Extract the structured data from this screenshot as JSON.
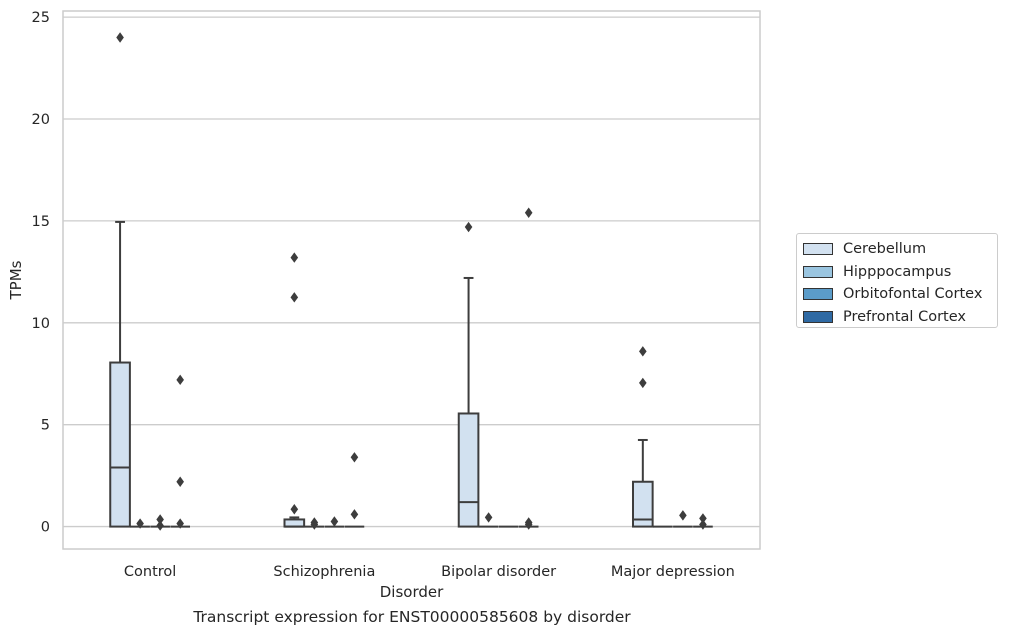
{
  "chart_data": {
    "type": "box",
    "xlabel": "Disorder",
    "ylabel": "TPMs",
    "caption": "Transcript expression for ENST00000585608 by disorder",
    "ylim": [
      -1.1,
      25.3
    ],
    "yticks": [
      0,
      5,
      10,
      15,
      20,
      25
    ],
    "grid": "horizontal",
    "legend_placement": "right",
    "categories": [
      "Control",
      "Schizophrenia",
      "Bipolar disorder",
      "Major depression"
    ],
    "series": [
      {
        "name": "Cerebellum",
        "color": "#d2e1f0",
        "boxes": [
          {
            "q1": 0,
            "median": 2.9,
            "q3": 8.05,
            "whisker_low": 0,
            "whisker_high": 14.95,
            "outliers": [
              24.0
            ]
          },
          {
            "q1": 0,
            "median": 0,
            "q3": 0.35,
            "whisker_low": 0,
            "whisker_high": 0.45,
            "outliers": [
              13.2,
              11.25,
              0.85
            ]
          },
          {
            "q1": 0,
            "median": 1.2,
            "q3": 5.55,
            "whisker_low": 0,
            "whisker_high": 12.2,
            "outliers": [
              14.7
            ]
          },
          {
            "q1": 0,
            "median": 0.35,
            "q3": 2.2,
            "whisker_low": 0,
            "whisker_high": 4.25,
            "outliers": [
              8.6,
              7.05
            ]
          }
        ]
      },
      {
        "name": "Hipppocampus",
        "color": "#9ac5e0",
        "boxes": [
          {
            "q1": 0,
            "median": 0,
            "q3": 0,
            "whisker_low": 0,
            "whisker_high": 0,
            "outliers": [
              0.15
            ]
          },
          {
            "q1": 0,
            "median": 0,
            "q3": 0,
            "whisker_low": 0,
            "whisker_high": 0,
            "outliers": [
              0.2,
              0.1
            ]
          },
          {
            "q1": 0,
            "median": 0,
            "q3": 0,
            "whisker_low": 0,
            "whisker_high": 0,
            "outliers": [
              0.45
            ]
          },
          {
            "q1": 0,
            "median": 0,
            "q3": 0,
            "whisker_low": 0,
            "whisker_high": 0,
            "outliers": []
          }
        ]
      },
      {
        "name": "Orbitofontal Cortex",
        "color": "#5b9cc9",
        "boxes": [
          {
            "q1": 0,
            "median": 0,
            "q3": 0,
            "whisker_low": 0,
            "whisker_high": 0,
            "outliers": [
              0.35,
              0.05
            ]
          },
          {
            "q1": 0,
            "median": 0,
            "q3": 0,
            "whisker_low": 0,
            "whisker_high": 0,
            "outliers": [
              0.25
            ]
          },
          {
            "q1": 0,
            "median": 0,
            "q3": 0,
            "whisker_low": 0,
            "whisker_high": 0,
            "outliers": []
          },
          {
            "q1": 0,
            "median": 0,
            "q3": 0,
            "whisker_low": 0,
            "whisker_high": 0,
            "outliers": [
              0.55
            ]
          }
        ]
      },
      {
        "name": "Prefrontal Cortex",
        "color": "#2f6aa4",
        "boxes": [
          {
            "q1": 0,
            "median": 0,
            "q3": 0,
            "whisker_low": 0,
            "whisker_high": 0,
            "outliers": [
              7.2,
              2.2,
              0.15
            ]
          },
          {
            "q1": 0,
            "median": 0,
            "q3": 0,
            "whisker_low": 0,
            "whisker_high": 0,
            "outliers": [
              3.4,
              0.6
            ]
          },
          {
            "q1": 0,
            "median": 0,
            "q3": 0,
            "whisker_low": 0,
            "whisker_high": 0,
            "outliers": [
              15.4,
              0.2,
              0.1
            ]
          },
          {
            "q1": 0,
            "median": 0,
            "q3": 0,
            "whisker_low": 0,
            "whisker_high": 0,
            "outliers": [
              0.4,
              0.1
            ]
          }
        ]
      }
    ]
  }
}
